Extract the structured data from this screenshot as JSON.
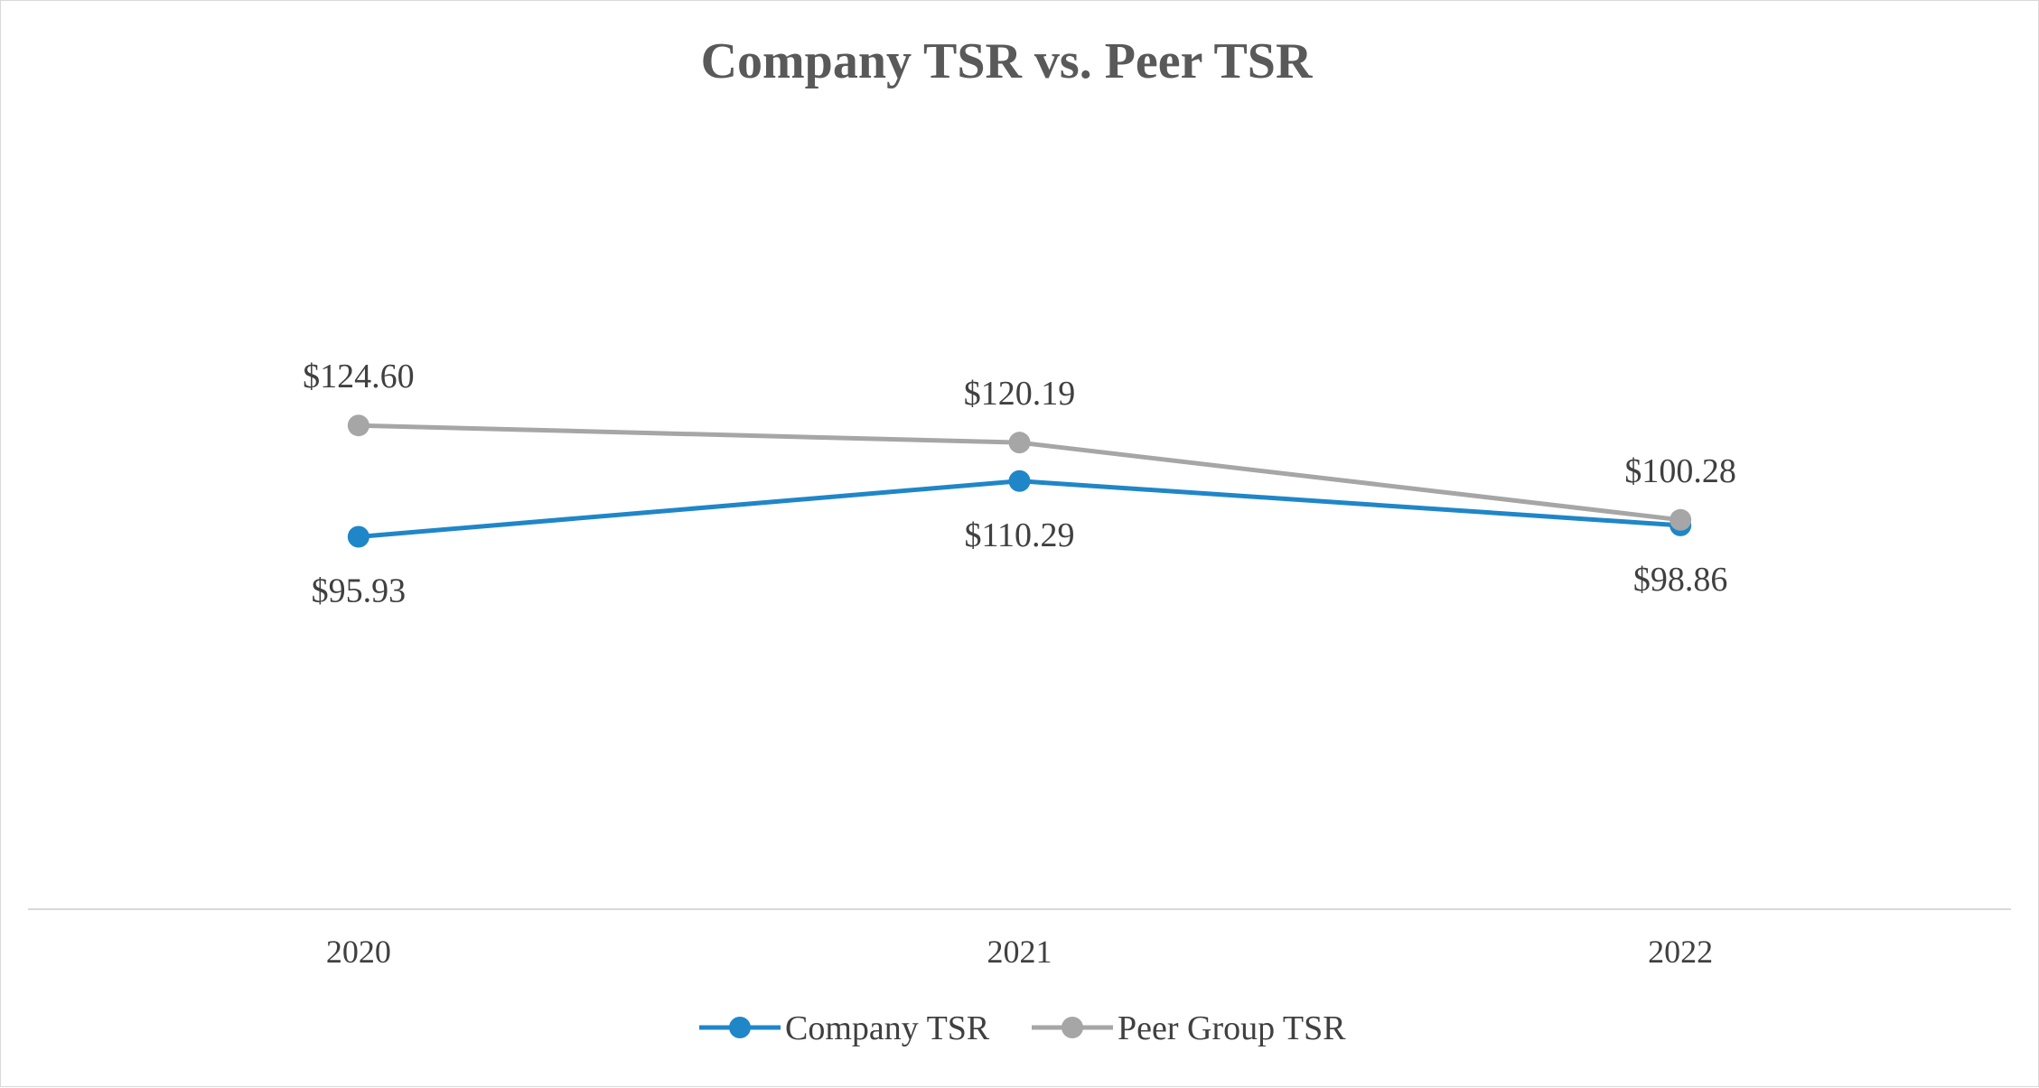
{
  "chart_data": {
    "type": "line",
    "title": "Company TSR vs. Peer TSR",
    "categories": [
      "2020",
      "2021",
      "2022"
    ],
    "xlabel": "",
    "ylabel": "",
    "ylim": [
      0,
      200
    ],
    "grid": false,
    "legend_position": "bottom",
    "series": [
      {
        "name": "Company TSR",
        "color": "#1f86c8",
        "values": [
          95.93,
          110.29,
          98.86
        ],
        "labels": [
          "$95.93",
          "$110.29",
          "$98.86"
        ],
        "label_position": "below"
      },
      {
        "name": "Peer Group TSR",
        "color": "#a6a6a6",
        "values": [
          124.6,
          120.19,
          100.28
        ],
        "labels": [
          "$124.60",
          "$120.19",
          "$100.28"
        ],
        "label_position": "above"
      }
    ]
  }
}
